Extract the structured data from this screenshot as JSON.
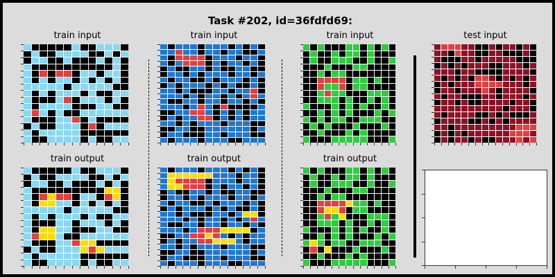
{
  "title": "Task #202, id=36fdfd69:",
  "labels": {
    "train_input": "train input",
    "train_output": "train output",
    "test_input": "test input"
  },
  "colors": {
    "0": "#000000",
    "1": "#1e78d2",
    "2": "#e53e3e",
    "3": "#2ecc40",
    "4": "#ffdc00",
    "8": "#87d8f5",
    "9": "#8c1226"
  },
  "grids": {
    "t1_in": [
      "8000008008880",
      "0800888800808",
      "0880080008080",
      "8000000000080",
      "8020220880880",
      "8080880808080",
      "8888808888800",
      "8080888080088",
      "8000820888080",
      "8088880008800",
      "8280800888888",
      "8000882080000",
      "0800888020888",
      "8088888000000",
      "8008888080088"
    ],
    "t1_out": [
      "8000008008880",
      "0800888800808",
      "0880080008080",
      "8000000000440",
      "8024220880240",
      "8044880808080",
      "8888808888800",
      "8080888080088",
      "8000880888080",
      "8044880008800",
      "8244800888888",
      "8000882440000",
      "0800888424888",
      "8088888000000",
      "8008888080088"
    ],
    "t2_in": [
      "10111011101010",
      "11211011011001",
      "10222201110110",
      "10122201011010",
      "01001101001100",
      "01101011101101",
      "10110010111010",
      "01011101010010",
      "11010001101120",
      "11101011010121",
      "10011011011010",
      "11101210200001",
      "00112210101011",
      "01011220101011",
      "11010111011100",
      "00110011111101",
      "01100011011100",
      "10111011100111"
    ],
    "t2_out": [
      "10111011101010",
      "14444441110110",
      "14222201110110",
      "14422201011010",
      "01001101001100",
      "01101011101101",
      "10110010111010",
      "01011101010010",
      "11010001101440",
      "11101011010121",
      "10011011011010",
      "11101222444401",
      "00112242101011",
      "01011224441011",
      "11010111011100",
      "00110011111101",
      "01100011011100",
      "10111011100111"
    ],
    "t3_in": [
      "3030003303030",
      "0300303303000",
      "0300333003003",
      "0003000330000",
      "0030330000000",
      "0022220330300",
      "0023320330000",
      "0032330003330",
      "0033303003030",
      "3000303030030",
      "0030303000303",
      "3030330033300",
      "0303000300030",
      "0030003030000",
      "3000333330003"
    ],
    "t3_out": [
      "3030003303030",
      "0300303303000",
      "0300333003003",
      "0003000330000",
      "0030330000000",
      "0022224330300",
      "0024420330000",
      "0032340003330",
      "0033303003030",
      "3000303030030",
      "0030303000303",
      "3430330033300",
      "0204000300030",
      "0030003030000",
      "3000333330003"
    ],
    "test_in": [
      "922299009099090",
      "990299009900090",
      "900099099999000",
      "090909990099909",
      "999099000099990",
      "909090229090909",
      "090999222299909",
      "099099929099990",
      "909900099099909",
      "099090099990990",
      "999999999909990",
      "909999009090009",
      "099990090909999",
      "990999999999222",
      "090909999992229",
      "090990900999292"
    ]
  },
  "test_output": {
    "rows": 16,
    "cols": 15
  }
}
